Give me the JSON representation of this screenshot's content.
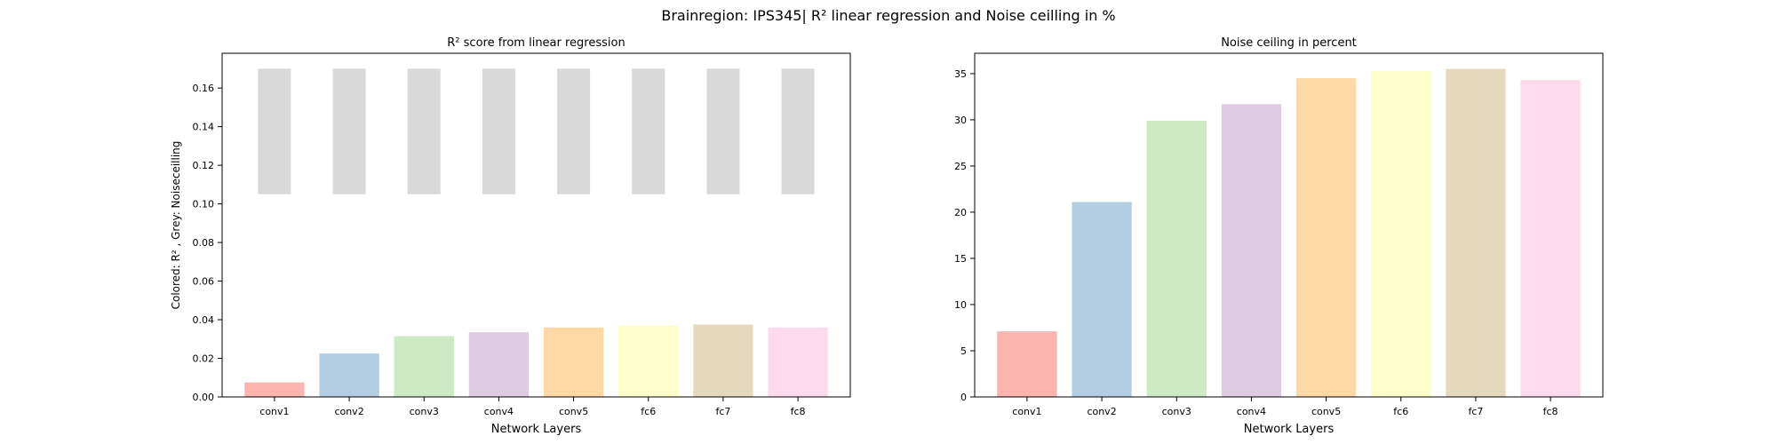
{
  "figure": {
    "suptitle": "Brainregion: IPS345| R² linear regression and Noise ceilling in %"
  },
  "chart_data": [
    {
      "type": "bar",
      "title": "R² score from linear regression",
      "xlabel": "Network Layers",
      "ylabel": "Colored: R² , Grey: Noiseceilling",
      "categories": [
        "conv1",
        "conv2",
        "conv3",
        "conv4",
        "conv5",
        "fc6",
        "fc7",
        "fc8"
      ],
      "ylim": [
        0,
        0.178
      ],
      "yticks": [
        "0.00",
        "0.02",
        "0.04",
        "0.06",
        "0.08",
        "0.10",
        "0.12",
        "0.14",
        "0.16"
      ],
      "series": [
        {
          "kind": "range",
          "color": "#d9d9d9",
          "lower": [
            0.105,
            0.105,
            0.105,
            0.105,
            0.105,
            0.105,
            0.105,
            0.105
          ],
          "upper": [
            0.17,
            0.17,
            0.17,
            0.17,
            0.17,
            0.17,
            0.17,
            0.17
          ]
        },
        {
          "kind": "bar",
          "values": [
            0.0075,
            0.0225,
            0.0315,
            0.0335,
            0.036,
            0.037,
            0.0375,
            0.036
          ]
        }
      ],
      "colors": [
        "#fbb4ae",
        "#b3cde3",
        "#ccebc5",
        "#decbe4",
        "#fed9a6",
        "#ffffcc",
        "#e5d8bd",
        "#fddaec"
      ],
      "grid": false
    },
    {
      "type": "bar",
      "title": "Noise ceiling in percent",
      "xlabel": "Network Layers",
      "ylabel": "",
      "categories": [
        "conv1",
        "conv2",
        "conv3",
        "conv4",
        "conv5",
        "fc6",
        "fc7",
        "fc8"
      ],
      "ylim": [
        0,
        37.2
      ],
      "yticks": [
        "0",
        "5",
        "10",
        "15",
        "20",
        "25",
        "30",
        "35"
      ],
      "series": [
        {
          "kind": "bar",
          "values": [
            7.1,
            21.1,
            29.9,
            31.7,
            34.5,
            35.3,
            35.5,
            34.3
          ]
        }
      ],
      "colors": [
        "#fbb4ae",
        "#b3cde3",
        "#ccebc5",
        "#decbe4",
        "#fed9a6",
        "#ffffcc",
        "#e5d8bd",
        "#fddaec"
      ],
      "grid": false
    }
  ]
}
